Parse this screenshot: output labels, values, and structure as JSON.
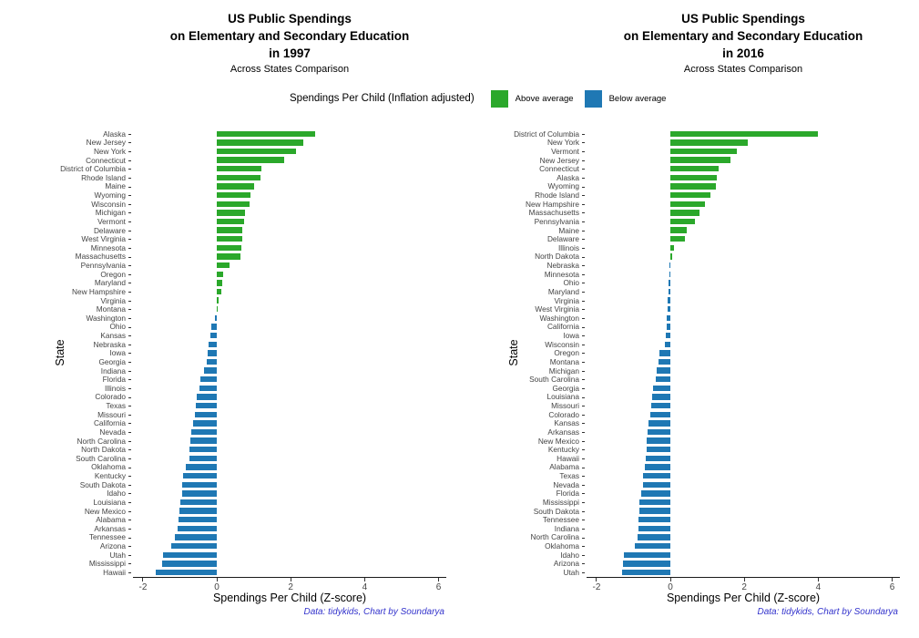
{
  "legend": {
    "title": "Spendings Per Child (Inflation adjusted)",
    "items": [
      {
        "label": "Above average",
        "color": "#2BA82B"
      },
      {
        "label": "Below average",
        "color": "#1F78B4"
      }
    ]
  },
  "caption": "Data: tidykids, Chart by Soundarya",
  "colors": {
    "above": "#2BA82B",
    "below": "#1F78B4",
    "axis": "#1a1a1a",
    "tick_text": "#444444",
    "caption": "#3333cc"
  },
  "chart_data": [
    {
      "type": "bar",
      "orientation": "horizontal",
      "title": "US Public Spendings\non Elementary and Secondary Education\nin 1997",
      "subtitle": "Across States Comparison",
      "xlabel": "Spendings Per Child (Z-score)",
      "ylabel": "State",
      "xlim": [
        -2.27,
        6.21
      ],
      "xticks": [
        -2,
        0,
        2,
        4,
        6
      ],
      "grid": false,
      "color_rule": "value >= 0 green (above average), value < 0 blue (below average)",
      "categories": [
        "Alaska",
        "New Jersey",
        "New York",
        "Connecticut",
        "District of Columbia",
        "Rhode Island",
        "Maine",
        "Wyoming",
        "Wisconsin",
        "Michigan",
        "Vermont",
        "Delaware",
        "West Virginia",
        "Minnesota",
        "Massachusetts",
        "Pennsylvania",
        "Oregon",
        "Maryland",
        "New Hampshire",
        "Virginia",
        "Montana",
        "Washington",
        "Ohio",
        "Kansas",
        "Nebraska",
        "Iowa",
        "Georgia",
        "Indiana",
        "Florida",
        "Illinois",
        "Colorado",
        "Texas",
        "Missouri",
        "California",
        "Nevada",
        "North Carolina",
        "North Dakota",
        "South Carolina",
        "Oklahoma",
        "Kentucky",
        "South Dakota",
        "Idaho",
        "Louisiana",
        "New Mexico",
        "Alabama",
        "Arkansas",
        "Tennessee",
        "Arizona",
        "Utah",
        "Mississippi",
        "Hawaii"
      ],
      "values": [
        2.65,
        2.33,
        2.15,
        1.82,
        1.2,
        1.17,
        1.02,
        0.9,
        0.88,
        0.75,
        0.73,
        0.7,
        0.68,
        0.66,
        0.63,
        0.34,
        0.18,
        0.14,
        0.13,
        0.04,
        0.02,
        -0.05,
        -0.15,
        -0.18,
        -0.22,
        -0.25,
        -0.28,
        -0.35,
        -0.44,
        -0.47,
        -0.54,
        -0.56,
        -0.59,
        -0.64,
        -0.69,
        -0.72,
        -0.73,
        -0.74,
        -0.84,
        -0.91,
        -0.93,
        -0.95,
        -0.99,
        -1.01,
        -1.03,
        -1.06,
        -1.14,
        -1.23,
        -1.45,
        -1.48,
        -1.65
      ]
    },
    {
      "type": "bar",
      "orientation": "horizontal",
      "title": "US Public Spendings\non Elementary and Secondary Education\nin 2016",
      "subtitle": "Across States Comparison",
      "xlabel": "Spendings Per Child (Z-score)",
      "ylabel": "State",
      "xlim": [
        -2.27,
        6.21
      ],
      "xticks": [
        -2,
        0,
        2,
        4,
        6
      ],
      "grid": false,
      "color_rule": "value >= 0 green (above average), value < 0 blue (below average)",
      "categories": [
        "District of Columbia",
        "New York",
        "Vermont",
        "New Jersey",
        "Connecticut",
        "Alaska",
        "Wyoming",
        "Rhode Island",
        "New Hampshire",
        "Massachusetts",
        "Pennsylvania",
        "Maine",
        "Delaware",
        "Illinois",
        "North Dakota",
        "Nebraska",
        "Minnesota",
        "Ohio",
        "Maryland",
        "Virginia",
        "West Virginia",
        "Washington",
        "California",
        "Iowa",
        "Wisconsin",
        "Oregon",
        "Montana",
        "Michigan",
        "South Carolina",
        "Georgia",
        "Louisiana",
        "Missouri",
        "Colorado",
        "Kansas",
        "Arkansas",
        "New Mexico",
        "Kentucky",
        "Hawaii",
        "Alabama",
        "Texas",
        "Nevada",
        "Florida",
        "Mississippi",
        "South Dakota",
        "Tennessee",
        "Indiana",
        "North Carolina",
        "Oklahoma",
        "Idaho",
        "Arizona",
        "Utah"
      ],
      "values": [
        4.0,
        2.1,
        1.8,
        1.63,
        1.31,
        1.26,
        1.23,
        1.08,
        0.94,
        0.79,
        0.67,
        0.43,
        0.4,
        0.1,
        0.04,
        -0.02,
        -0.03,
        -0.05,
        -0.06,
        -0.07,
        -0.08,
        -0.1,
        -0.11,
        -0.13,
        -0.15,
        -0.3,
        -0.32,
        -0.37,
        -0.4,
        -0.47,
        -0.49,
        -0.52,
        -0.54,
        -0.59,
        -0.62,
        -0.64,
        -0.65,
        -0.67,
        -0.69,
        -0.74,
        -0.75,
        -0.79,
        -0.84,
        -0.85,
        -0.86,
        -0.87,
        -0.89,
        -0.96,
        -1.26,
        -1.28,
        -1.31
      ]
    }
  ]
}
